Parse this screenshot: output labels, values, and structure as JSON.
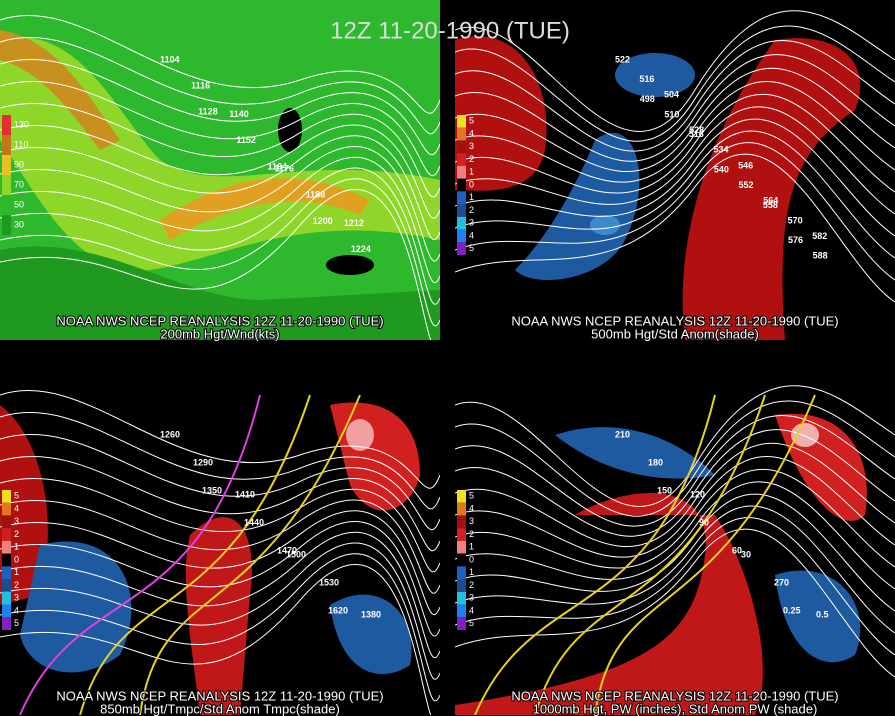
{
  "title": "12Z 11-20-1990 (TUE)",
  "panels": [
    {
      "source": "NOAA NWS NCEP REANALYSIS 12Z 11-20-1990 (TUE)",
      "caption": "200mb Hgt/Wnd(kts)",
      "legend": [
        "130",
        "110",
        "90",
        "70",
        "50",
        "30"
      ],
      "contour_labels": [
        "1104",
        "1116",
        "1128",
        "1140",
        "1152",
        "1164",
        "1176",
        "1188",
        "1200",
        "1212",
        "1224"
      ]
    },
    {
      "source": "NOAA NWS NCEP REANALYSIS 12Z 11-20-1990 (TUE)",
      "caption": "500mb Hgt/Std Anom(shade)",
      "legend": [
        "5",
        "4",
        "3",
        "2",
        "1",
        "0",
        "1",
        "2",
        "3",
        "4",
        "5"
      ],
      "contour_labels": [
        "522",
        "516",
        "498",
        "504",
        "510",
        "516",
        "528",
        "534",
        "540",
        "546",
        "552",
        "558",
        "564",
        "570",
        "576",
        "582",
        "588"
      ]
    },
    {
      "source": "NOAA NWS NCEP REANALYSIS 12Z 11-20-1990 (TUE)",
      "caption": "850mb Hgt/Tmpc/Std Anom Tmpc(shade)",
      "legend": [
        "5",
        "4",
        "3",
        "2",
        "1",
        "0",
        "1",
        "2",
        "3",
        "4",
        "5"
      ],
      "contour_labels": [
        "1260",
        "1290",
        "1350",
        "1410",
        "1440",
        "1470",
        "1500",
        "1530",
        "1620",
        "1380"
      ]
    },
    {
      "source": "NOAA NWS NCEP REANALYSIS 12Z 11-20-1990 (TUE)",
      "caption": "1000mb Hgt, PW (inches), Std Anom PW (shade)",
      "legend": [
        "5",
        "4",
        "3",
        "2",
        "1",
        "0",
        "1",
        "2",
        "3",
        "4",
        "5"
      ],
      "contour_labels": [
        "210",
        "180",
        "150",
        "120",
        "90",
        "60",
        "30",
        "270",
        "0.25",
        "0.5"
      ]
    }
  ]
}
